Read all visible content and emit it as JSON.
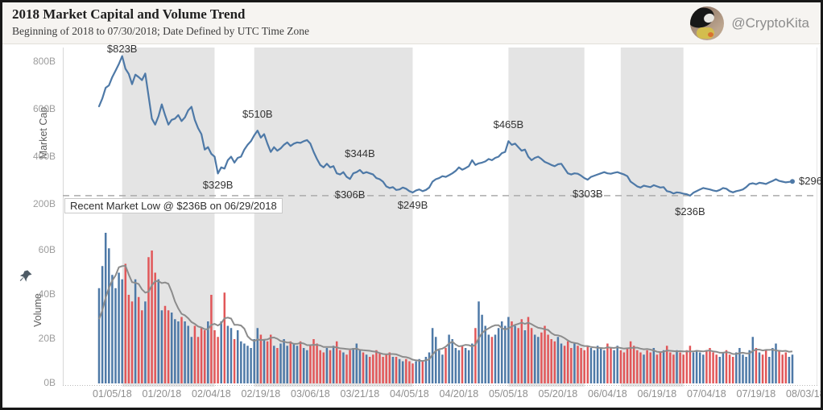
{
  "header": {
    "title": "2018 Market Capital and Volume Trend",
    "subtitle": "Beginning of 2018 to 07/30/2018; Date Defined by UTC Time Zone",
    "handle": "@CryptoKita",
    "avatar_description": "cat-with-plush-toy"
  },
  "colors": {
    "line_blue": "#4e79a7",
    "bar_up_blue": "#4e79a7",
    "bar_down_red": "#e15759",
    "ma_gray": "#8c8c8c",
    "band_gray": "#e4e4e4",
    "dashed_ref": "#ababab",
    "header_bg": "#f6f4f1",
    "frame_border": "#181818",
    "axis_text": "#9c9c9c",
    "annotation_text": "#333333"
  },
  "chart_data": [
    {
      "type": "line",
      "title": "Market Cap",
      "ylabel": "Market Cap",
      "ylim": [
        200,
        850
      ],
      "y_ticks": [
        {
          "label": "800B",
          "value": 800
        },
        {
          "label": "600B",
          "value": 600
        },
        {
          "label": "400B",
          "value": 400
        },
        {
          "label": "200B",
          "value": 200
        }
      ],
      "x_start_date": "01/01/2018",
      "x_tick_labels": [
        "01/05/18",
        "01/20/18",
        "02/04/18",
        "02/19/18",
        "03/06/18",
        "03/21/18",
        "04/05/18",
        "04/20/18",
        "05/05/18",
        "05/20/18",
        "06/04/18",
        "06/19/18",
        "07/04/18",
        "07/19/18",
        "08/03/18"
      ],
      "x_tick_day_indices": [
        4,
        19,
        34,
        49,
        64,
        79,
        94,
        109,
        124,
        139,
        154,
        169,
        184,
        199,
        214
      ],
      "highlight_band_day_ranges": [
        [
          7,
          35
        ],
        [
          47,
          95
        ],
        [
          124,
          147
        ],
        [
          158,
          177
        ]
      ],
      "reference_line": {
        "value": 236,
        "label": "Recent Market Low @ $236B on 06/29/2018"
      },
      "annotations": [
        {
          "label": "$823B",
          "day": 7,
          "value": 823,
          "pos": "above",
          "gap": 6
        },
        {
          "label": "$329B",
          "day": 36,
          "value": 329,
          "pos": "below",
          "gap": 7
        },
        {
          "label": "$510B",
          "day": 48,
          "value": 510,
          "pos": "above",
          "gap": 17
        },
        {
          "label": "$306B",
          "day": 76,
          "value": 306,
          "pos": "below",
          "gap": 12
        },
        {
          "label": "$344B",
          "day": 79,
          "value": 344,
          "pos": "above",
          "gap": 17
        },
        {
          "label": "$249B",
          "day": 95,
          "value": 249,
          "pos": "below",
          "gap": 8
        },
        {
          "label": "$465B",
          "day": 124,
          "value": 465,
          "pos": "above",
          "gap": 17
        },
        {
          "label": "$303B",
          "day": 148,
          "value": 303,
          "pos": "below",
          "gap": 10
        },
        {
          "label": "$236B",
          "day": 179,
          "value": 236,
          "pos": "below",
          "gap": 12
        },
        {
          "label": "$296B",
          "day": 210,
          "value": 296,
          "pos": "right",
          "gap": 8
        }
      ],
      "series": [
        {
          "name": "Total Market Cap (billions USD, daily)",
          "values": [
            612,
            645,
            690,
            700,
            735,
            762,
            790,
            823,
            770,
            748,
            705,
            745,
            735,
            722,
            750,
            655,
            560,
            535,
            570,
            620,
            575,
            535,
            555,
            560,
            575,
            550,
            565,
            595,
            610,
            555,
            520,
            495,
            430,
            440,
            412,
            400,
            329,
            355,
            350,
            385,
            400,
            375,
            395,
            400,
            430,
            450,
            465,
            490,
            510,
            480,
            495,
            455,
            420,
            440,
            425,
            435,
            450,
            460,
            445,
            455,
            460,
            458,
            465,
            470,
            455,
            420,
            390,
            365,
            355,
            370,
            355,
            360,
            330,
            325,
            335,
            315,
            306,
            330,
            335,
            344,
            330,
            335,
            330,
            325,
            310,
            305,
            295,
            275,
            268,
            272,
            260,
            262,
            270,
            265,
            255,
            249,
            258,
            262,
            255,
            260,
            270,
            295,
            305,
            310,
            318,
            315,
            322,
            330,
            340,
            355,
            345,
            352,
            360,
            385,
            365,
            372,
            375,
            380,
            390,
            385,
            395,
            400,
            415,
            420,
            465,
            450,
            455,
            440,
            425,
            430,
            400,
            385,
            395,
            400,
            390,
            378,
            372,
            365,
            360,
            368,
            370,
            350,
            330,
            325,
            330,
            328,
            320,
            310,
            303,
            315,
            320,
            325,
            330,
            335,
            330,
            328,
            332,
            335,
            330,
            325,
            318,
            295,
            285,
            275,
            270,
            278,
            275,
            272,
            280,
            275,
            270,
            272,
            255,
            252,
            245,
            250,
            248,
            244,
            242,
            236,
            248,
            255,
            262,
            268,
            265,
            262,
            258,
            255,
            260,
            268,
            265,
            255,
            250,
            255,
            258,
            262,
            272,
            285,
            288,
            284,
            290,
            288,
            285,
            292,
            298,
            305,
            298,
            295,
            292,
            294,
            296
          ]
        }
      ]
    },
    {
      "type": "bar",
      "title": "Volume",
      "ylabel": "Volume",
      "ylim": [
        0,
        70
      ],
      "y_ticks": [
        {
          "label": "60B",
          "value": 60
        },
        {
          "label": "40B",
          "value": 40
        },
        {
          "label": "20B",
          "value": 20
        },
        {
          "label": "0B",
          "value": 0
        }
      ],
      "bar_color_rule": "blue when market cap rose vs prior day, red when it fell",
      "ma_seed": [
        25,
        28,
        30,
        26,
        27,
        24
      ],
      "series": [
        {
          "name": "Daily Volume (billions USD)",
          "values": [
            43,
            53,
            68,
            61,
            49,
            43,
            50,
            47,
            54,
            40,
            37,
            47,
            39,
            33,
            37,
            57,
            60,
            50,
            47,
            33,
            35,
            33,
            32,
            29,
            28,
            30,
            28,
            26,
            21,
            26,
            21,
            25,
            24,
            28,
            40,
            24,
            21,
            28,
            41,
            26,
            25,
            20,
            24,
            19,
            18,
            17,
            16,
            20,
            25,
            22,
            20,
            19,
            22,
            17,
            16,
            18,
            20,
            17,
            19,
            18,
            17,
            19,
            16,
            15,
            17,
            20,
            18,
            15,
            14,
            16,
            15,
            17,
            19,
            15,
            14,
            13,
            15,
            16,
            18,
            15,
            14,
            13,
            12,
            13,
            15,
            14,
            12,
            13,
            14,
            12,
            12,
            11,
            10,
            11,
            10,
            9,
            10,
            11,
            10,
            12,
            14,
            25,
            21,
            15,
            13,
            16,
            22,
            20,
            16,
            15,
            17,
            16,
            15,
            18,
            25,
            37,
            31,
            26,
            22,
            21,
            22,
            25,
            28,
            26,
            30,
            28,
            26,
            25,
            29,
            24,
            30,
            25,
            22,
            21,
            23,
            26,
            22,
            20,
            19,
            21,
            18,
            17,
            19,
            16,
            18,
            17,
            16,
            15,
            17,
            16,
            15,
            17,
            16,
            15,
            18,
            16,
            15,
            17,
            15,
            14,
            16,
            19,
            17,
            15,
            14,
            13,
            15,
            14,
            16,
            13,
            14,
            15,
            17,
            14,
            13,
            15,
            14,
            13,
            15,
            17,
            14,
            15,
            14,
            13,
            15,
            16,
            14,
            13,
            12,
            14,
            15,
            13,
            12,
            14,
            16,
            13,
            12,
            15,
            21,
            16,
            14,
            13,
            15,
            12,
            16,
            18,
            15,
            13,
            14,
            12,
            13
          ]
        },
        {
          "name": "Volume trailing 7-day moving average",
          "derived": "computed from daily volume with ma_seed preceding values"
        }
      ]
    }
  ]
}
